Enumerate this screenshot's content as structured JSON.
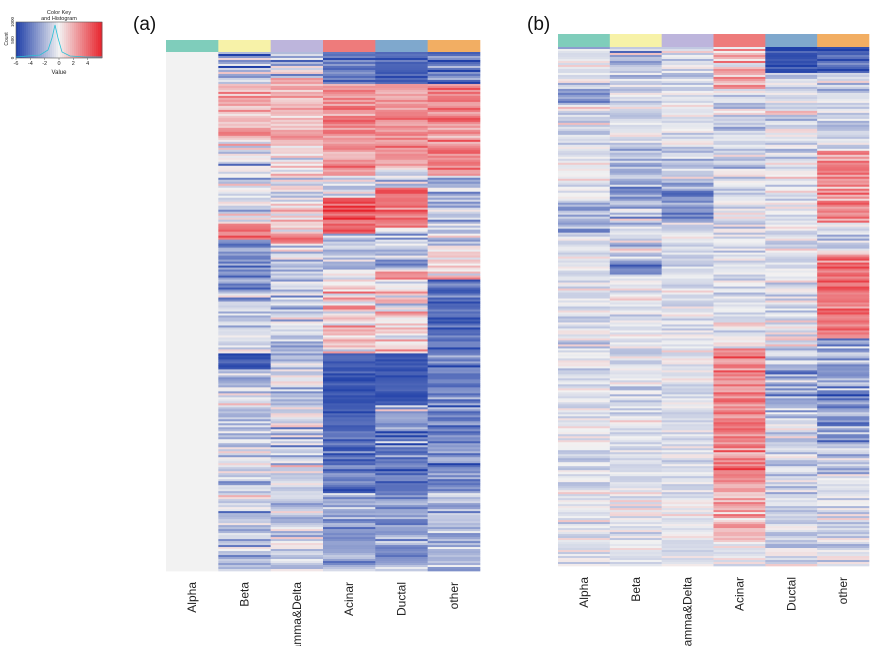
{
  "colors": {
    "low": "#1f3fa8",
    "mid": "#f2f2f2",
    "high": "#e8232c",
    "annotation": [
      "#7fcdbb",
      "#f7f2a8",
      "#bdb5dc",
      "#ee7b7b",
      "#7fa8cd",
      "#f2ae63"
    ]
  },
  "color_key": {
    "title_line1": "Color Key",
    "title_line2": "and Histogram",
    "x_label": "Value",
    "y_label": "Count",
    "ticks": [
      "-6",
      "-4",
      "-2",
      "0",
      "2",
      "4"
    ],
    "y_ticks": [
      "0",
      "500",
      "1000"
    ]
  },
  "chart_data": [
    {
      "type": "heatmap",
      "panel_label": "(a)",
      "columns": [
        "Alpha",
        "Beta",
        "Gamma&Delta",
        "Acinar",
        "Ductal",
        "other"
      ],
      "value_range": [
        -6,
        6
      ],
      "n_rows": 260,
      "column_profiles": [
        [
          {
            "from": 0.0,
            "to": 1.0,
            "mean": 0.0,
            "spread": 0.0
          }
        ],
        [
          {
            "from": 0.0,
            "to": 0.06,
            "mean": -1.5,
            "spread": 3.0
          },
          {
            "from": 0.06,
            "to": 0.17,
            "mean": 2.0,
            "spread": 1.2
          },
          {
            "from": 0.17,
            "to": 0.33,
            "mean": -0.8,
            "spread": 2.6
          },
          {
            "from": 0.33,
            "to": 0.36,
            "mean": 4.0,
            "spread": 1.0
          },
          {
            "from": 0.36,
            "to": 0.46,
            "mean": -3.5,
            "spread": 1.6
          },
          {
            "from": 0.46,
            "to": 0.58,
            "mean": -1.0,
            "spread": 2.0
          },
          {
            "from": 0.58,
            "to": 0.61,
            "mean": -4.8,
            "spread": 0.8
          },
          {
            "from": 0.61,
            "to": 1.0,
            "mean": -1.3,
            "spread": 2.0
          }
        ],
        [
          {
            "from": 0.0,
            "to": 0.05,
            "mean": -1.5,
            "spread": 2.5
          },
          {
            "from": 0.05,
            "to": 0.18,
            "mean": 1.8,
            "spread": 1.2
          },
          {
            "from": 0.18,
            "to": 0.35,
            "mean": 0.3,
            "spread": 2.0
          },
          {
            "from": 0.35,
            "to": 0.37,
            "mean": 3.5,
            "spread": 1.0
          },
          {
            "from": 0.37,
            "to": 0.58,
            "mean": -1.2,
            "spread": 1.8
          },
          {
            "from": 0.58,
            "to": 1.0,
            "mean": -1.2,
            "spread": 2.0
          }
        ],
        [
          {
            "from": 0.0,
            "to": 0.06,
            "mean": -4.2,
            "spread": 1.2
          },
          {
            "from": 0.06,
            "to": 0.24,
            "mean": 2.6,
            "spread": 1.4
          },
          {
            "from": 0.24,
            "to": 0.28,
            "mean": -1.0,
            "spread": 2.0
          },
          {
            "from": 0.28,
            "to": 0.35,
            "mean": 4.2,
            "spread": 1.2
          },
          {
            "from": 0.35,
            "to": 0.42,
            "mean": -2.0,
            "spread": 1.8
          },
          {
            "from": 0.42,
            "to": 0.58,
            "mean": 0.6,
            "spread": 2.2
          },
          {
            "from": 0.58,
            "to": 0.73,
            "mean": -5.0,
            "spread": 0.8
          },
          {
            "from": 0.73,
            "to": 0.85,
            "mean": -4.2,
            "spread": 1.4
          },
          {
            "from": 0.85,
            "to": 1.0,
            "mean": -2.5,
            "spread": 1.6
          }
        ],
        [
          {
            "from": 0.0,
            "to": 0.06,
            "mean": -4.8,
            "spread": 0.9
          },
          {
            "from": 0.06,
            "to": 0.22,
            "mean": 2.8,
            "spread": 1.2
          },
          {
            "from": 0.22,
            "to": 0.26,
            "mean": -1.0,
            "spread": 2.0
          },
          {
            "from": 0.26,
            "to": 0.34,
            "mean": 3.8,
            "spread": 1.2
          },
          {
            "from": 0.34,
            "to": 0.42,
            "mean": -1.8,
            "spread": 2.0
          },
          {
            "from": 0.42,
            "to": 0.58,
            "mean": 0.6,
            "spread": 2.2
          },
          {
            "from": 0.58,
            "to": 0.68,
            "mean": -5.2,
            "spread": 0.7
          },
          {
            "from": 0.68,
            "to": 0.76,
            "mean": -3.0,
            "spread": 2.6
          },
          {
            "from": 0.76,
            "to": 0.86,
            "mean": -4.0,
            "spread": 1.4
          },
          {
            "from": 0.86,
            "to": 1.0,
            "mean": -2.4,
            "spread": 1.6
          }
        ],
        [
          {
            "from": 0.0,
            "to": 0.06,
            "mean": -4.0,
            "spread": 1.6
          },
          {
            "from": 0.06,
            "to": 0.24,
            "mean": 3.0,
            "spread": 1.4
          },
          {
            "from": 0.24,
            "to": 0.38,
            "mean": -1.5,
            "spread": 1.8
          },
          {
            "from": 0.38,
            "to": 0.44,
            "mean": 1.0,
            "spread": 2.5
          },
          {
            "from": 0.44,
            "to": 0.58,
            "mean": -4.2,
            "spread": 1.2
          },
          {
            "from": 0.58,
            "to": 0.85,
            "mean": -3.5,
            "spread": 1.8
          },
          {
            "from": 0.85,
            "to": 1.0,
            "mean": -2.0,
            "spread": 1.6
          }
        ]
      ]
    },
    {
      "type": "heatmap",
      "panel_label": "(b)",
      "columns": [
        "Alpha",
        "Beta",
        "Gamma&Delta",
        "Acinar",
        "Ductal",
        "other"
      ],
      "value_range": [
        -6,
        6
      ],
      "n_rows": 260,
      "column_profiles": [
        [
          {
            "from": 0.0,
            "to": 0.08,
            "mean": -0.6,
            "spread": 1.6
          },
          {
            "from": 0.08,
            "to": 0.11,
            "mean": -3.0,
            "spread": 1.0
          },
          {
            "from": 0.11,
            "to": 0.3,
            "mean": -0.6,
            "spread": 1.4
          },
          {
            "from": 0.3,
            "to": 0.36,
            "mean": -2.2,
            "spread": 1.6
          },
          {
            "from": 0.36,
            "to": 1.0,
            "mean": -0.5,
            "spread": 1.2
          }
        ],
        [
          {
            "from": 0.0,
            "to": 0.06,
            "mean": -1.2,
            "spread": 2.6
          },
          {
            "from": 0.06,
            "to": 0.18,
            "mean": -0.5,
            "spread": 1.2
          },
          {
            "from": 0.18,
            "to": 0.36,
            "mean": -2.0,
            "spread": 2.0
          },
          {
            "from": 0.36,
            "to": 0.41,
            "mean": -1.0,
            "spread": 1.6
          },
          {
            "from": 0.41,
            "to": 0.44,
            "mean": -4.0,
            "spread": 1.0
          },
          {
            "from": 0.44,
            "to": 1.0,
            "mean": -0.5,
            "spread": 1.2
          }
        ],
        [
          {
            "from": 0.0,
            "to": 0.18,
            "mean": -0.5,
            "spread": 1.2
          },
          {
            "from": 0.18,
            "to": 0.26,
            "mean": -1.5,
            "spread": 1.8
          },
          {
            "from": 0.26,
            "to": 0.34,
            "mean": -3.2,
            "spread": 1.4
          },
          {
            "from": 0.34,
            "to": 1.0,
            "mean": -0.4,
            "spread": 1.0
          }
        ],
        [
          {
            "from": 0.0,
            "to": 0.08,
            "mean": 1.5,
            "spread": 2.5
          },
          {
            "from": 0.08,
            "to": 0.58,
            "mean": -0.7,
            "spread": 1.6
          },
          {
            "from": 0.58,
            "to": 0.85,
            "mean": 3.0,
            "spread": 1.5
          },
          {
            "from": 0.85,
            "to": 0.96,
            "mean": 1.5,
            "spread": 1.6
          },
          {
            "from": 0.96,
            "to": 1.0,
            "mean": -0.5,
            "spread": 1.0
          }
        ],
        [
          {
            "from": 0.0,
            "to": 0.05,
            "mean": -5.2,
            "spread": 0.7
          },
          {
            "from": 0.05,
            "to": 0.58,
            "mean": -0.6,
            "spread": 1.6
          },
          {
            "from": 0.58,
            "to": 0.72,
            "mean": -1.8,
            "spread": 2.0
          },
          {
            "from": 0.72,
            "to": 1.0,
            "mean": -0.8,
            "spread": 1.4
          }
        ],
        [
          {
            "from": 0.0,
            "to": 0.05,
            "mean": -4.8,
            "spread": 1.0
          },
          {
            "from": 0.05,
            "to": 0.2,
            "mean": -1.0,
            "spread": 1.6
          },
          {
            "from": 0.2,
            "to": 0.34,
            "mean": 3.0,
            "spread": 1.6
          },
          {
            "from": 0.34,
            "to": 0.4,
            "mean": -0.8,
            "spread": 1.6
          },
          {
            "from": 0.4,
            "to": 0.56,
            "mean": 3.6,
            "spread": 1.4
          },
          {
            "from": 0.56,
            "to": 0.76,
            "mean": -2.8,
            "spread": 2.0
          },
          {
            "from": 0.76,
            "to": 1.0,
            "mean": -1.0,
            "spread": 1.6
          }
        ]
      ]
    }
  ]
}
